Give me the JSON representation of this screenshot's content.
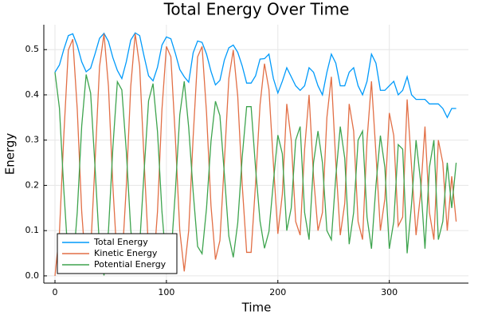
{
  "chart_data": {
    "type": "line",
    "title": "Total Energy Over Time",
    "x_label": "Time",
    "y_label": "Energy",
    "x": [
      0,
      4,
      8,
      12,
      16,
      20,
      24,
      28,
      32,
      36,
      40,
      44,
      48,
      52,
      56,
      60,
      64,
      68,
      72,
      76,
      80,
      84,
      88,
      92,
      96,
      100,
      104,
      108,
      112,
      116,
      120,
      124,
      128,
      132,
      136,
      140,
      144,
      148,
      152,
      156,
      160,
      164,
      168,
      172,
      176,
      180,
      184,
      188,
      192,
      196,
      200,
      204,
      208,
      212,
      216,
      220,
      224,
      228,
      232,
      236,
      240,
      244,
      248,
      252,
      256,
      260,
      264,
      268,
      272,
      276,
      280,
      284,
      288,
      292,
      296,
      300,
      304,
      308,
      312,
      316,
      320,
      324,
      328,
      332,
      336,
      340,
      344,
      348,
      352,
      356,
      360
    ],
    "series": [
      {
        "name": "Total Energy",
        "color": "#009afa",
        "values": [
          0.45,
          0.466,
          0.501,
          0.531,
          0.535,
          0.509,
          0.473,
          0.451,
          0.459,
          0.491,
          0.525,
          0.536,
          0.518,
          0.482,
          0.454,
          0.436,
          0.473,
          0.521,
          0.537,
          0.531,
          0.485,
          0.442,
          0.431,
          0.461,
          0.51,
          0.528,
          0.524,
          0.492,
          0.456,
          0.44,
          0.428,
          0.493,
          0.519,
          0.516,
          0.49,
          0.452,
          0.422,
          0.432,
          0.477,
          0.504,
          0.51,
          0.494,
          0.464,
          0.426,
          0.426,
          0.442,
          0.479,
          0.48,
          0.49,
          0.436,
          0.404,
          0.43,
          0.46,
          0.44,
          0.42,
          0.41,
          0.42,
          0.46,
          0.45,
          0.42,
          0.4,
          0.45,
          0.49,
          0.47,
          0.42,
          0.42,
          0.45,
          0.46,
          0.42,
          0.4,
          0.43,
          0.49,
          0.47,
          0.41,
          0.41,
          0.42,
          0.43,
          0.4,
          0.41,
          0.44,
          0.4,
          0.39,
          0.39,
          0.39,
          0.38,
          0.38,
          0.38,
          0.37,
          0.35,
          0.37,
          0.37
        ]
      },
      {
        "name": "Kinetic Energy",
        "color": "#e26f46",
        "values": [
          0,
          0.095,
          0.313,
          0.499,
          0.523,
          0.368,
          0.142,
          0.006,
          0.055,
          0.253,
          0.463,
          0.535,
          0.419,
          0.197,
          0.025,
          0.025,
          0.197,
          0.419,
          0.535,
          0.463,
          0.253,
          0.055,
          0.006,
          0.142,
          0.368,
          0.507,
          0.484,
          0.306,
          0.1,
          0.01,
          0.1,
          0.307,
          0.484,
          0.507,
          0.36,
          0.155,
          0.036,
          0.078,
          0.252,
          0.436,
          0.499,
          0.397,
          0.202,
          0.052,
          0.052,
          0.204,
          0.378,
          0.469,
          0.412,
          0.248,
          0.093,
          0.18,
          0.38,
          0.3,
          0.12,
          0.09,
          0.28,
          0.4,
          0.22,
          0.1,
          0.14,
          0.35,
          0.44,
          0.25,
          0.09,
          0.16,
          0.38,
          0.32,
          0.12,
          0.08,
          0.3,
          0.43,
          0.27,
          0.1,
          0.17,
          0.36,
          0.31,
          0.11,
          0.13,
          0.39,
          0.24,
          0.09,
          0.18,
          0.33,
          0.14,
          0.08,
          0.3,
          0.25,
          0.1,
          0.22,
          0.12
        ]
      },
      {
        "name": "Potential Energy",
        "color": "#3ea44e",
        "values": [
          0.45,
          0.371,
          0.188,
          0.032,
          0.012,
          0.141,
          0.331,
          0.445,
          0.404,
          0.238,
          0.062,
          0.001,
          0.099,
          0.285,
          0.429,
          0.411,
          0.276,
          0.102,
          0.011,
          0.068,
          0.232,
          0.387,
          0.425,
          0.319,
          0.142,
          0.021,
          0.04,
          0.186,
          0.356,
          0.43,
          0.328,
          0.186,
          0.065,
          0.049,
          0.15,
          0.297,
          0.386,
          0.354,
          0.225,
          0.088,
          0.041,
          0.117,
          0.262,
          0.374,
          0.374,
          0.238,
          0.121,
          0.061,
          0.098,
          0.208,
          0.311,
          0.27,
          0.1,
          0.15,
          0.3,
          0.33,
          0.14,
          0.08,
          0.25,
          0.32,
          0.25,
          0.1,
          0.08,
          0.22,
          0.33,
          0.26,
          0.07,
          0.14,
          0.3,
          0.32,
          0.13,
          0.06,
          0.2,
          0.31,
          0.24,
          0.06,
          0.12,
          0.29,
          0.28,
          0.05,
          0.16,
          0.3,
          0.21,
          0.06,
          0.24,
          0.3,
          0.08,
          0.12,
          0.25,
          0.15,
          0.25
        ]
      }
    ],
    "xlim": [
      -10,
      371
    ],
    "xticks": [
      0,
      100,
      200,
      300
    ],
    "ylim": [
      -0.016,
      0.555
    ],
    "yticks": [
      {
        "value": 0,
        "label": "0.0"
      },
      0.1,
      0.2,
      0.3,
      0.4,
      0.5
    ],
    "grid": true,
    "legend": "bottom-left"
  }
}
